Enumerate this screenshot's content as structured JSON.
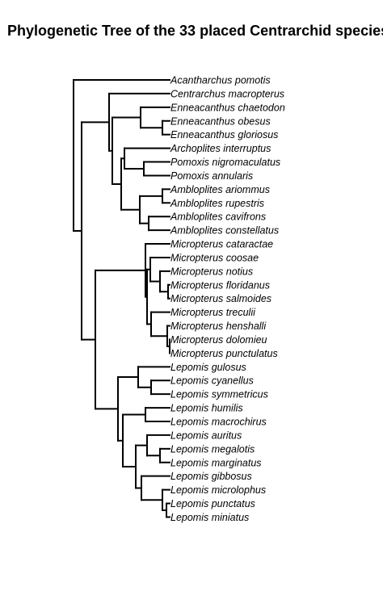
{
  "title": "Phylogenetic Tree of the 33 placed Centrarchid species",
  "tips": [
    "Acantharchus pomotis",
    "Centrarchus macropterus",
    "Enneacanthus chaetodon",
    "Enneacanthus obesus",
    "Enneacanthus gloriosus",
    "Archoplites interruptus",
    "Pomoxis nigromaculatus",
    "Pomoxis annularis",
    "Ambloplites ariommus",
    "Ambloplites rupestris",
    "Ambloplites cavifrons",
    "Ambloplites constellatus",
    "Micropterus cataractae",
    "Micropterus coosae",
    "Micropterus notius",
    "Micropterus floridanus",
    "Micropterus salmoides",
    "Micropterus treculii",
    "Micropterus henshalli",
    "Micropterus dolomieu",
    "Micropterus punctulatus",
    "Lepomis gulosus",
    "Lepomis cyanellus",
    "Lepomis symmetricus",
    "Lepomis humilis",
    "Lepomis macrochirus",
    "Lepomis auritus",
    "Lepomis megalotis",
    "Lepomis marginatus",
    "Lepomis gibbosus",
    "Lepomis microlophus",
    "Lepomis punctatus",
    "Lepomis miniatus"
  ]
}
